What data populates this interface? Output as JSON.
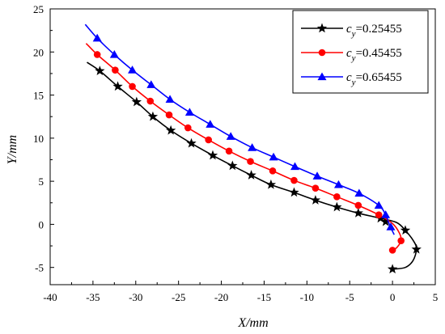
{
  "chart_data": {
    "type": "line",
    "title": "",
    "xlabel": "X/mm",
    "ylabel": "Y/mm",
    "xlim": [
      -40,
      5
    ],
    "ylim": [
      -7,
      25
    ],
    "xticks": [
      -40,
      -35,
      -30,
      -25,
      -20,
      -15,
      -10,
      -5,
      0,
      5
    ],
    "yticks": [
      -5,
      0,
      5,
      10,
      15,
      20,
      25
    ],
    "legend_position": "top-right",
    "series": [
      {
        "name": "c_y=0.25455",
        "label_var": "c",
        "label_sub": "y",
        "label_value": "=0.25455",
        "color": "#000000",
        "marker": "star",
        "line": [
          [
            -35.7,
            18.8
          ],
          [
            -34.2,
            17.8
          ],
          [
            -32.1,
            16.0
          ],
          [
            -29.9,
            14.2
          ],
          [
            -28.0,
            12.5
          ],
          [
            -25.9,
            10.9
          ],
          [
            -23.5,
            9.4
          ],
          [
            -21.0,
            8.0
          ],
          [
            -18.7,
            6.8
          ],
          [
            -16.5,
            5.7
          ],
          [
            -14.2,
            4.6
          ],
          [
            -11.5,
            3.7
          ],
          [
            -9.0,
            2.8
          ],
          [
            -6.5,
            2.0
          ],
          [
            -4.0,
            1.3
          ],
          [
            -1.4,
            0.7
          ],
          [
            0.5,
            0.2
          ],
          [
            1.5,
            -0.7
          ],
          [
            2.5,
            -2.0
          ],
          [
            2.8,
            -2.9
          ],
          [
            2.4,
            -4.2
          ],
          [
            1.5,
            -5.0
          ],
          [
            0.0,
            -5.2
          ]
        ],
        "points": [
          [
            -34.2,
            17.8
          ],
          [
            -32.1,
            16.0
          ],
          [
            -29.9,
            14.2
          ],
          [
            -28.0,
            12.5
          ],
          [
            -25.9,
            10.9
          ],
          [
            -23.5,
            9.4
          ],
          [
            -21.0,
            8.0
          ],
          [
            -18.7,
            6.8
          ],
          [
            -16.5,
            5.7
          ],
          [
            -14.2,
            4.6
          ],
          [
            -11.5,
            3.7
          ],
          [
            -9.0,
            2.8
          ],
          [
            -6.5,
            2.0
          ],
          [
            -4.0,
            1.3
          ],
          [
            -1.4,
            0.7
          ],
          [
            -0.8,
            0.3
          ],
          [
            1.5,
            -0.7
          ],
          [
            2.8,
            -2.9
          ],
          [
            0.0,
            -5.2
          ]
        ]
      },
      {
        "name": "c_y=0.45455",
        "label_var": "c",
        "label_sub": "y",
        "label_value": "=0.45455",
        "color": "#ff0000",
        "marker": "circle",
        "line": [
          [
            -35.8,
            21.0
          ],
          [
            -34.5,
            19.7
          ],
          [
            -32.4,
            17.9
          ],
          [
            -30.4,
            16.0
          ],
          [
            -28.3,
            14.3
          ],
          [
            -26.1,
            12.7
          ],
          [
            -23.9,
            11.2
          ],
          [
            -21.5,
            9.8
          ],
          [
            -19.1,
            8.5
          ],
          [
            -16.6,
            7.3
          ],
          [
            -14.0,
            6.2
          ],
          [
            -11.5,
            5.1
          ],
          [
            -9.0,
            4.2
          ],
          [
            -6.5,
            3.2
          ],
          [
            -4.0,
            2.2
          ],
          [
            -1.6,
            1.1
          ],
          [
            0.0,
            0.1
          ],
          [
            0.8,
            -1.0
          ],
          [
            1.0,
            -1.9
          ],
          [
            0.5,
            -2.7
          ],
          [
            0.0,
            -3.0
          ]
        ],
        "points": [
          [
            -34.5,
            19.7
          ],
          [
            -32.4,
            17.9
          ],
          [
            -30.4,
            16.0
          ],
          [
            -28.3,
            14.3
          ],
          [
            -26.1,
            12.7
          ],
          [
            -23.9,
            11.2
          ],
          [
            -21.5,
            9.8
          ],
          [
            -19.1,
            8.5
          ],
          [
            -16.6,
            7.3
          ],
          [
            -14.0,
            6.2
          ],
          [
            -11.5,
            5.1
          ],
          [
            -9.0,
            4.2
          ],
          [
            -6.5,
            3.2
          ],
          [
            -4.0,
            2.2
          ],
          [
            -1.6,
            1.1
          ],
          [
            1.0,
            -1.9
          ],
          [
            0.0,
            -3.0
          ]
        ]
      },
      {
        "name": "c_y=0.65455",
        "label_var": "c",
        "label_sub": "y",
        "label_value": "=0.65455",
        "color": "#0000ff",
        "marker": "triangle",
        "line": [
          [
            -35.9,
            23.2
          ],
          [
            -34.5,
            21.6
          ],
          [
            -32.5,
            19.7
          ],
          [
            -30.4,
            17.9
          ],
          [
            -28.2,
            16.2
          ],
          [
            -26.0,
            14.5
          ],
          [
            -23.7,
            13.0
          ],
          [
            -21.3,
            11.6
          ],
          [
            -18.9,
            10.2
          ],
          [
            -16.4,
            8.9
          ],
          [
            -13.9,
            7.8
          ],
          [
            -11.4,
            6.7
          ],
          [
            -8.8,
            5.6
          ],
          [
            -6.3,
            4.6
          ],
          [
            -3.9,
            3.6
          ],
          [
            -1.6,
            2.2
          ],
          [
            -0.8,
            1.1
          ],
          [
            -0.3,
            -0.2
          ],
          [
            0.0,
            -0.8
          ],
          [
            0.2,
            -1.2
          ]
        ],
        "points": [
          [
            -34.5,
            21.6
          ],
          [
            -32.5,
            19.7
          ],
          [
            -30.4,
            17.9
          ],
          [
            -28.2,
            16.2
          ],
          [
            -26.0,
            14.5
          ],
          [
            -23.7,
            13.0
          ],
          [
            -21.3,
            11.6
          ],
          [
            -18.9,
            10.2
          ],
          [
            -16.4,
            8.9
          ],
          [
            -13.9,
            7.8
          ],
          [
            -11.4,
            6.7
          ],
          [
            -8.8,
            5.6
          ],
          [
            -6.3,
            4.6
          ],
          [
            -3.9,
            3.6
          ],
          [
            -1.6,
            2.2
          ],
          [
            -0.8,
            1.1
          ],
          [
            -0.2,
            -0.3
          ]
        ]
      }
    ]
  }
}
